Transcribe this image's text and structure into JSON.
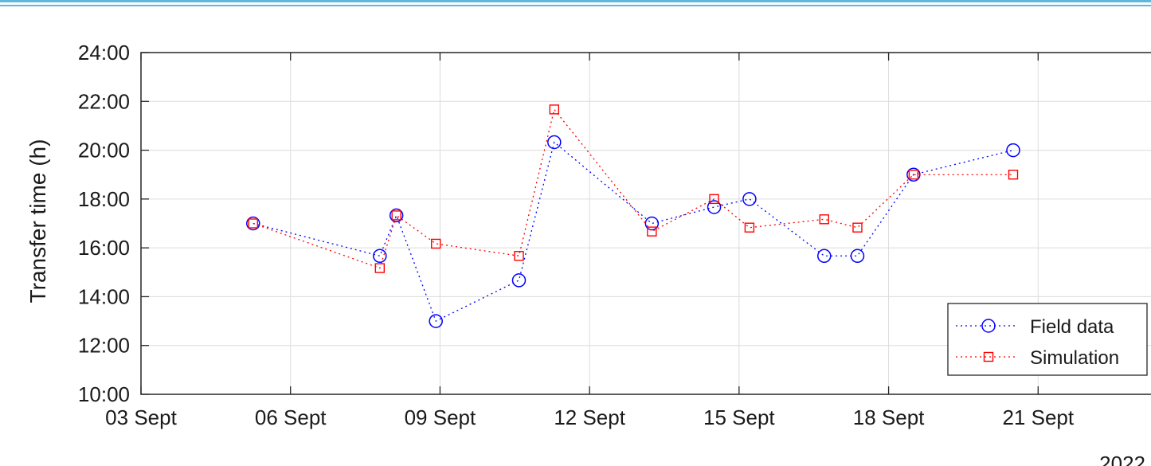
{
  "chart_data": {
    "type": "line",
    "title": "",
    "xlabel": "",
    "ylabel": "Transfer time (h)",
    "year_label": "2022",
    "x_tick_labels": [
      "03 Sept",
      "06 Sept",
      "09 Sept",
      "12 Sept",
      "15 Sept",
      "18 Sept",
      "21 Sept"
    ],
    "y_tick_labels": [
      "10:00",
      "12:00",
      "14:00",
      "16:00",
      "18:00",
      "20:00",
      "22:00",
      "24:00"
    ],
    "xlim": [
      "2022-09-03",
      "2022-09-24"
    ],
    "ylim": [
      10,
      24
    ],
    "grid": true,
    "legend_position": "bottom-right",
    "series": [
      {
        "name": "Field data",
        "color": "#0000ff",
        "marker": "circle",
        "x": [
          "2022-09-05 06:00",
          "2022-09-07 19:00",
          "2022-09-08 03:00",
          "2022-09-08 22:00",
          "2022-09-10 14:00",
          "2022-09-11 07:00",
          "2022-09-13 06:00",
          "2022-09-14 12:00",
          "2022-09-15 05:00",
          "2022-09-16 17:00",
          "2022-09-17 09:00",
          "2022-09-18 12:00",
          "2022-09-20 12:00"
        ],
        "y": [
          17.0,
          15.67,
          17.33,
          13.0,
          14.67,
          20.33,
          17.0,
          17.67,
          18.0,
          15.67,
          15.67,
          19.0,
          20.0
        ]
      },
      {
        "name": "Simulation",
        "color": "#ff0000",
        "marker": "square",
        "x": [
          "2022-09-05 06:00",
          "2022-09-07 19:00",
          "2022-09-08 03:00",
          "2022-09-08 22:00",
          "2022-09-10 14:00",
          "2022-09-11 07:00",
          "2022-09-13 06:00",
          "2022-09-14 12:00",
          "2022-09-15 05:00",
          "2022-09-16 17:00",
          "2022-09-17 09:00",
          "2022-09-18 12:00",
          "2022-09-20 12:00"
        ],
        "y": [
          17.0,
          15.17,
          17.33,
          16.17,
          15.67,
          21.67,
          16.67,
          18.0,
          16.83,
          17.17,
          16.83,
          19.0,
          19.0
        ]
      }
    ]
  }
}
